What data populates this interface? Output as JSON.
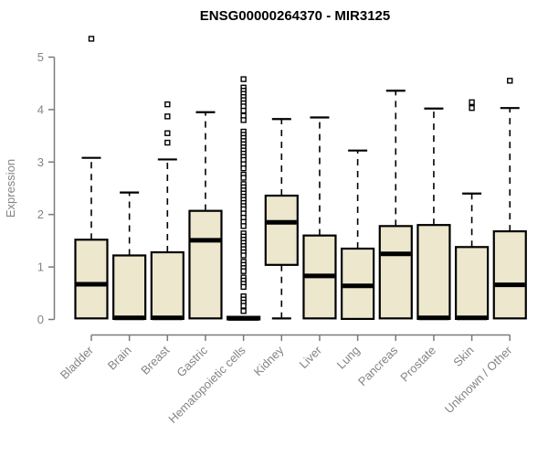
{
  "colors": {
    "box_fill": "#ECE7CD",
    "box_border": "#000000",
    "median": "#000000",
    "whisker": "#000000",
    "outlier_stroke": "#000000",
    "outlier_fill": "#ffffff",
    "axis_line": "#7a7a7a",
    "axis_text": "#848484",
    "title_text": "#000000",
    "background": "#ffffff"
  },
  "chart_data": {
    "type": "boxplot",
    "title": "ENSG00000264370 - MIR3125",
    "xlabel": "",
    "ylabel": "Expression",
    "ylim": [
      0,
      5.4
    ],
    "yticks": [
      0,
      1,
      2,
      3,
      4,
      5
    ],
    "grid": false,
    "legend": "none",
    "categories": [
      "Bladder",
      "Brain",
      "Breast",
      "Gastric",
      "Hematopoietic cells",
      "Kidney",
      "Liver",
      "Lung",
      "Pancreas",
      "Prostate",
      "Skin",
      "Unknown / Other"
    ],
    "boxes": [
      {
        "category": "Bladder",
        "low": 0,
        "q1": 0.02,
        "median": 0.67,
        "q3": 1.52,
        "high": 3.08,
        "outliers": [
          5.35
        ]
      },
      {
        "category": "Brain",
        "low": 0,
        "q1": 0.01,
        "median": 0.03,
        "q3": 1.22,
        "high": 2.42,
        "outliers": []
      },
      {
        "category": "Breast",
        "low": 0,
        "q1": 0.01,
        "median": 0.03,
        "q3": 1.28,
        "high": 3.05,
        "outliers": [
          3.37,
          3.55,
          3.87,
          4.1
        ]
      },
      {
        "category": "Gastric",
        "low": 0,
        "q1": 0.02,
        "median": 1.51,
        "q3": 2.07,
        "high": 3.95,
        "outliers": []
      },
      {
        "category": "Hematopoietic cells",
        "low": 0,
        "q1": 0.0,
        "median": 0.02,
        "q3": 0.05,
        "high": 0.06,
        "outliers": [
          4.58,
          4.42,
          4.36,
          4.3,
          4.24,
          4.18,
          4.12,
          4.06,
          3.98,
          3.88,
          3.8,
          3.58,
          3.52,
          3.46,
          3.4,
          3.34,
          3.28,
          3.22,
          3.16,
          3.1,
          3.04,
          2.96,
          2.88,
          2.76,
          2.7,
          2.58,
          2.52,
          2.46,
          2.4,
          2.34,
          2.28,
          2.22,
          2.16,
          2.1,
          2.02,
          1.94,
          1.86,
          1.78,
          1.64,
          1.58,
          1.52,
          1.46,
          1.4,
          1.34,
          1.28,
          1.22,
          1.1,
          1.04,
          0.98,
          0.92,
          0.8,
          0.74,
          0.68,
          0.62,
          0.44,
          0.38,
          0.32,
          0.26,
          0.16
        ]
      },
      {
        "category": "Kidney",
        "low": 0.02,
        "q1": 1.04,
        "median": 1.85,
        "q3": 2.36,
        "high": 3.82,
        "outliers": []
      },
      {
        "category": "Liver",
        "low": 0,
        "q1": 0.02,
        "median": 0.83,
        "q3": 1.6,
        "high": 3.85,
        "outliers": []
      },
      {
        "category": "Lung",
        "low": 0,
        "q1": 0.01,
        "median": 0.64,
        "q3": 1.35,
        "high": 3.22,
        "outliers": []
      },
      {
        "category": "Pancreas",
        "low": 0,
        "q1": 0.02,
        "median": 1.25,
        "q3": 1.78,
        "high": 4.36,
        "outliers": []
      },
      {
        "category": "Prostate",
        "low": 0,
        "q1": 0.01,
        "median": 0.03,
        "q3": 1.8,
        "high": 4.02,
        "outliers": []
      },
      {
        "category": "Skin",
        "low": 0,
        "q1": 0.01,
        "median": 0.03,
        "q3": 1.38,
        "high": 2.4,
        "outliers": [
          4.03,
          4.14
        ]
      },
      {
        "category": "Unknown / Other",
        "low": 0,
        "q1": 0.02,
        "median": 0.66,
        "q3": 1.68,
        "high": 4.03,
        "outliers": [
          4.55
        ]
      }
    ]
  }
}
